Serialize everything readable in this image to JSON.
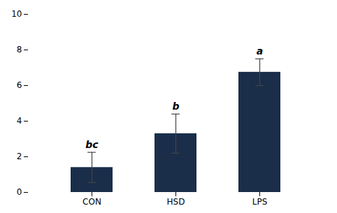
{
  "chart_data": {
    "type": "bar",
    "categories": [
      "CON",
      "HSD",
      "LPS"
    ],
    "values": [
      1.4,
      3.3,
      6.75
    ],
    "errors": [
      0.85,
      1.1,
      0.75
    ],
    "significance_labels": [
      "bc",
      "b",
      "a"
    ],
    "color": "#1a2e4a",
    "ylim": [
      0,
      10
    ],
    "yticks": [
      0,
      2,
      4,
      6,
      8,
      10
    ],
    "grid": false
  }
}
